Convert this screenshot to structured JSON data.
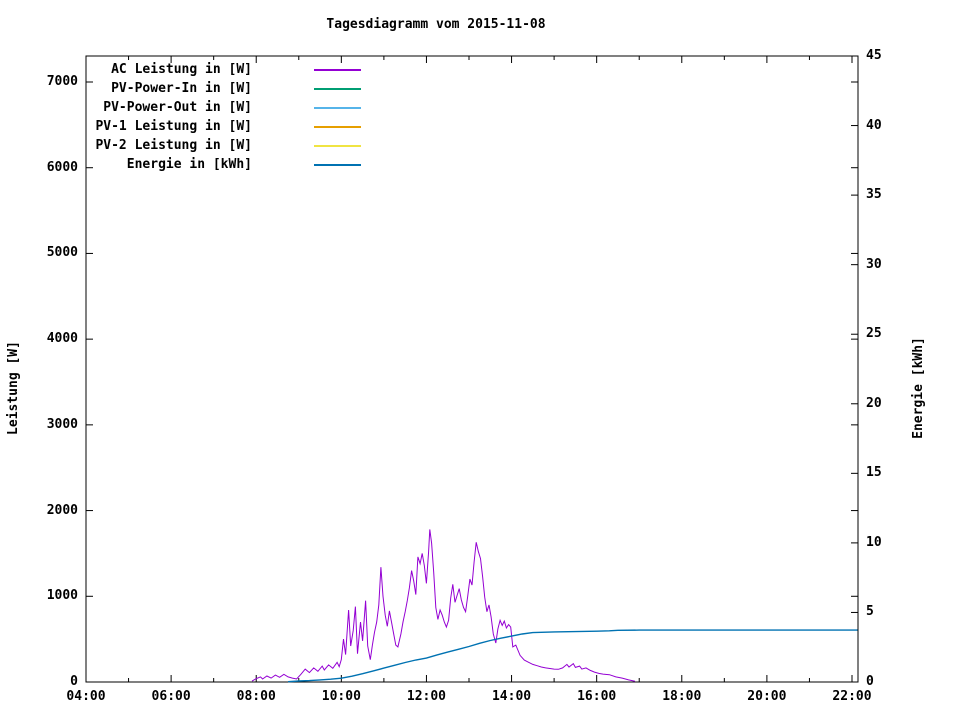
{
  "chart_data": {
    "type": "line",
    "title": "Tagesdiagramm vom 2015-11-08",
    "background": "#ffffff",
    "border_color": "#000000",
    "grid": false,
    "legend_position": "top-left-inside",
    "x_axis": {
      "label": "",
      "tick_labels": [
        "04:00",
        "06:00",
        "08:00",
        "10:00",
        "12:00",
        "14:00",
        "16:00",
        "18:00",
        "20:00",
        "22:00"
      ],
      "tick_hours": [
        4,
        6,
        8,
        10,
        12,
        14,
        16,
        18,
        20,
        22
      ],
      "minor_tick_hours": [
        5,
        7,
        9,
        11,
        13,
        15,
        17,
        19,
        21
      ],
      "range_hours": [
        4,
        22.15
      ]
    },
    "y_left": {
      "label": "Leistung [W]",
      "tick_labels": [
        "0",
        "1000",
        "2000",
        "3000",
        "4000",
        "5000",
        "6000",
        "7000"
      ],
      "tick_values": [
        0,
        1000,
        2000,
        3000,
        4000,
        5000,
        6000,
        7000
      ],
      "range": [
        0,
        7300
      ]
    },
    "y_right": {
      "label": "Energie [kWh]",
      "tick_labels": [
        "0",
        "5",
        "10",
        "15",
        "20",
        "25",
        "30",
        "35",
        "40",
        "45"
      ],
      "tick_values": [
        0,
        5,
        10,
        15,
        20,
        25,
        30,
        35,
        40,
        45
      ],
      "range": [
        0,
        45
      ]
    },
    "series": [
      {
        "name": "AC Leistung in [W]",
        "color": "#9400D3",
        "axis": "left",
        "stroke_width": 1,
        "points": [
          [
            7.9,
            10
          ],
          [
            8.0,
            40
          ],
          [
            8.1,
            60
          ],
          [
            8.15,
            35
          ],
          [
            8.25,
            70
          ],
          [
            8.35,
            45
          ],
          [
            8.45,
            80
          ],
          [
            8.55,
            55
          ],
          [
            8.65,
            90
          ],
          [
            8.75,
            60
          ],
          [
            8.85,
            45
          ],
          [
            8.95,
            35
          ],
          [
            9.05,
            90
          ],
          [
            9.15,
            150
          ],
          [
            9.25,
            110
          ],
          [
            9.35,
            165
          ],
          [
            9.45,
            125
          ],
          [
            9.55,
            185
          ],
          [
            9.6,
            140
          ],
          [
            9.7,
            200
          ],
          [
            9.8,
            160
          ],
          [
            9.9,
            230
          ],
          [
            9.95,
            180
          ],
          [
            10.0,
            260
          ],
          [
            10.05,
            500
          ],
          [
            10.1,
            320
          ],
          [
            10.17,
            840
          ],
          [
            10.22,
            420
          ],
          [
            10.28,
            600
          ],
          [
            10.33,
            880
          ],
          [
            10.38,
            330
          ],
          [
            10.45,
            700
          ],
          [
            10.5,
            480
          ],
          [
            10.57,
            950
          ],
          [
            10.62,
            420
          ],
          [
            10.68,
            260
          ],
          [
            10.73,
            430
          ],
          [
            10.78,
            580
          ],
          [
            10.83,
            700
          ],
          [
            10.88,
            900
          ],
          [
            10.93,
            1340
          ],
          [
            10.98,
            1000
          ],
          [
            11.03,
            780
          ],
          [
            11.08,
            650
          ],
          [
            11.13,
            830
          ],
          [
            11.18,
            700
          ],
          [
            11.23,
            560
          ],
          [
            11.28,
            430
          ],
          [
            11.33,
            410
          ],
          [
            11.4,
            560
          ],
          [
            11.45,
            700
          ],
          [
            11.5,
            820
          ],
          [
            11.55,
            950
          ],
          [
            11.6,
            1100
          ],
          [
            11.65,
            1300
          ],
          [
            11.7,
            1180
          ],
          [
            11.75,
            1020
          ],
          [
            11.8,
            1460
          ],
          [
            11.85,
            1380
          ],
          [
            11.9,
            1500
          ],
          [
            11.95,
            1360
          ],
          [
            12.0,
            1150
          ],
          [
            12.05,
            1520
          ],
          [
            12.08,
            1780
          ],
          [
            12.12,
            1620
          ],
          [
            12.17,
            1280
          ],
          [
            12.22,
            870
          ],
          [
            12.27,
            730
          ],
          [
            12.32,
            840
          ],
          [
            12.37,
            780
          ],
          [
            12.42,
            700
          ],
          [
            12.47,
            640
          ],
          [
            12.52,
            720
          ],
          [
            12.57,
            980
          ],
          [
            12.62,
            1140
          ],
          [
            12.67,
            930
          ],
          [
            12.72,
            1010
          ],
          [
            12.77,
            1090
          ],
          [
            12.82,
            960
          ],
          [
            12.87,
            870
          ],
          [
            12.92,
            820
          ],
          [
            12.97,
            1000
          ],
          [
            13.02,
            1200
          ],
          [
            13.07,
            1130
          ],
          [
            13.12,
            1400
          ],
          [
            13.17,
            1630
          ],
          [
            13.22,
            1520
          ],
          [
            13.27,
            1440
          ],
          [
            13.32,
            1230
          ],
          [
            13.37,
            990
          ],
          [
            13.42,
            820
          ],
          [
            13.47,
            900
          ],
          [
            13.52,
            760
          ],
          [
            13.57,
            560
          ],
          [
            13.63,
            455
          ],
          [
            13.68,
            620
          ],
          [
            13.73,
            720
          ],
          [
            13.78,
            660
          ],
          [
            13.83,
            710
          ],
          [
            13.88,
            630
          ],
          [
            13.93,
            670
          ],
          [
            13.98,
            640
          ],
          [
            14.03,
            410
          ],
          [
            14.1,
            430
          ],
          [
            14.2,
            310
          ],
          [
            14.3,
            255
          ],
          [
            14.4,
            230
          ],
          [
            14.5,
            205
          ],
          [
            14.6,
            190
          ],
          [
            14.7,
            175
          ],
          [
            14.8,
            165
          ],
          [
            14.9,
            158
          ],
          [
            15.0,
            150
          ],
          [
            15.1,
            148
          ],
          [
            15.2,
            165
          ],
          [
            15.3,
            205
          ],
          [
            15.35,
            175
          ],
          [
            15.45,
            215
          ],
          [
            15.5,
            170
          ],
          [
            15.6,
            185
          ],
          [
            15.65,
            150
          ],
          [
            15.75,
            165
          ],
          [
            15.85,
            135
          ],
          [
            15.95,
            115
          ],
          [
            16.05,
            100
          ],
          [
            16.15,
            92
          ],
          [
            16.3,
            85
          ],
          [
            16.45,
            60
          ],
          [
            16.6,
            45
          ],
          [
            16.75,
            25
          ],
          [
            16.9,
            8
          ]
        ]
      },
      {
        "name": "PV-Power-In in [W]",
        "color": "#009E73",
        "axis": "left",
        "stroke_width": 1,
        "points": []
      },
      {
        "name": "PV-Power-Out in [W]",
        "color": "#56B4E9",
        "axis": "left",
        "stroke_width": 1,
        "points": []
      },
      {
        "name": "PV-1 Leistung in [W]",
        "color": "#E69F00",
        "axis": "left",
        "stroke_width": 1,
        "points": []
      },
      {
        "name": "PV-2 Leistung in [W]",
        "color": "#F0E442",
        "axis": "left",
        "stroke_width": 1,
        "points": []
      },
      {
        "name": "Energie in [kWh]",
        "color": "#0072B2",
        "axis": "right",
        "stroke_width": 1.4,
        "points": [
          [
            8.75,
            0.02
          ],
          [
            9.0,
            0.07
          ],
          [
            9.25,
            0.1
          ],
          [
            9.5,
            0.15
          ],
          [
            9.75,
            0.2
          ],
          [
            10.0,
            0.27
          ],
          [
            10.25,
            0.42
          ],
          [
            10.5,
            0.6
          ],
          [
            10.75,
            0.8
          ],
          [
            11.0,
            1.0
          ],
          [
            11.25,
            1.2
          ],
          [
            11.5,
            1.4
          ],
          [
            11.75,
            1.58
          ],
          [
            12.0,
            1.72
          ],
          [
            12.25,
            1.95
          ],
          [
            12.5,
            2.15
          ],
          [
            12.75,
            2.35
          ],
          [
            13.0,
            2.55
          ],
          [
            13.25,
            2.78
          ],
          [
            13.5,
            2.98
          ],
          [
            13.75,
            3.15
          ],
          [
            14.0,
            3.3
          ],
          [
            14.25,
            3.45
          ],
          [
            14.5,
            3.55
          ],
          [
            15.0,
            3.6
          ],
          [
            15.5,
            3.62
          ],
          [
            16.0,
            3.65
          ],
          [
            16.3,
            3.68
          ],
          [
            16.5,
            3.72
          ],
          [
            17.0,
            3.73
          ],
          [
            22.13,
            3.73
          ]
        ]
      }
    ]
  }
}
